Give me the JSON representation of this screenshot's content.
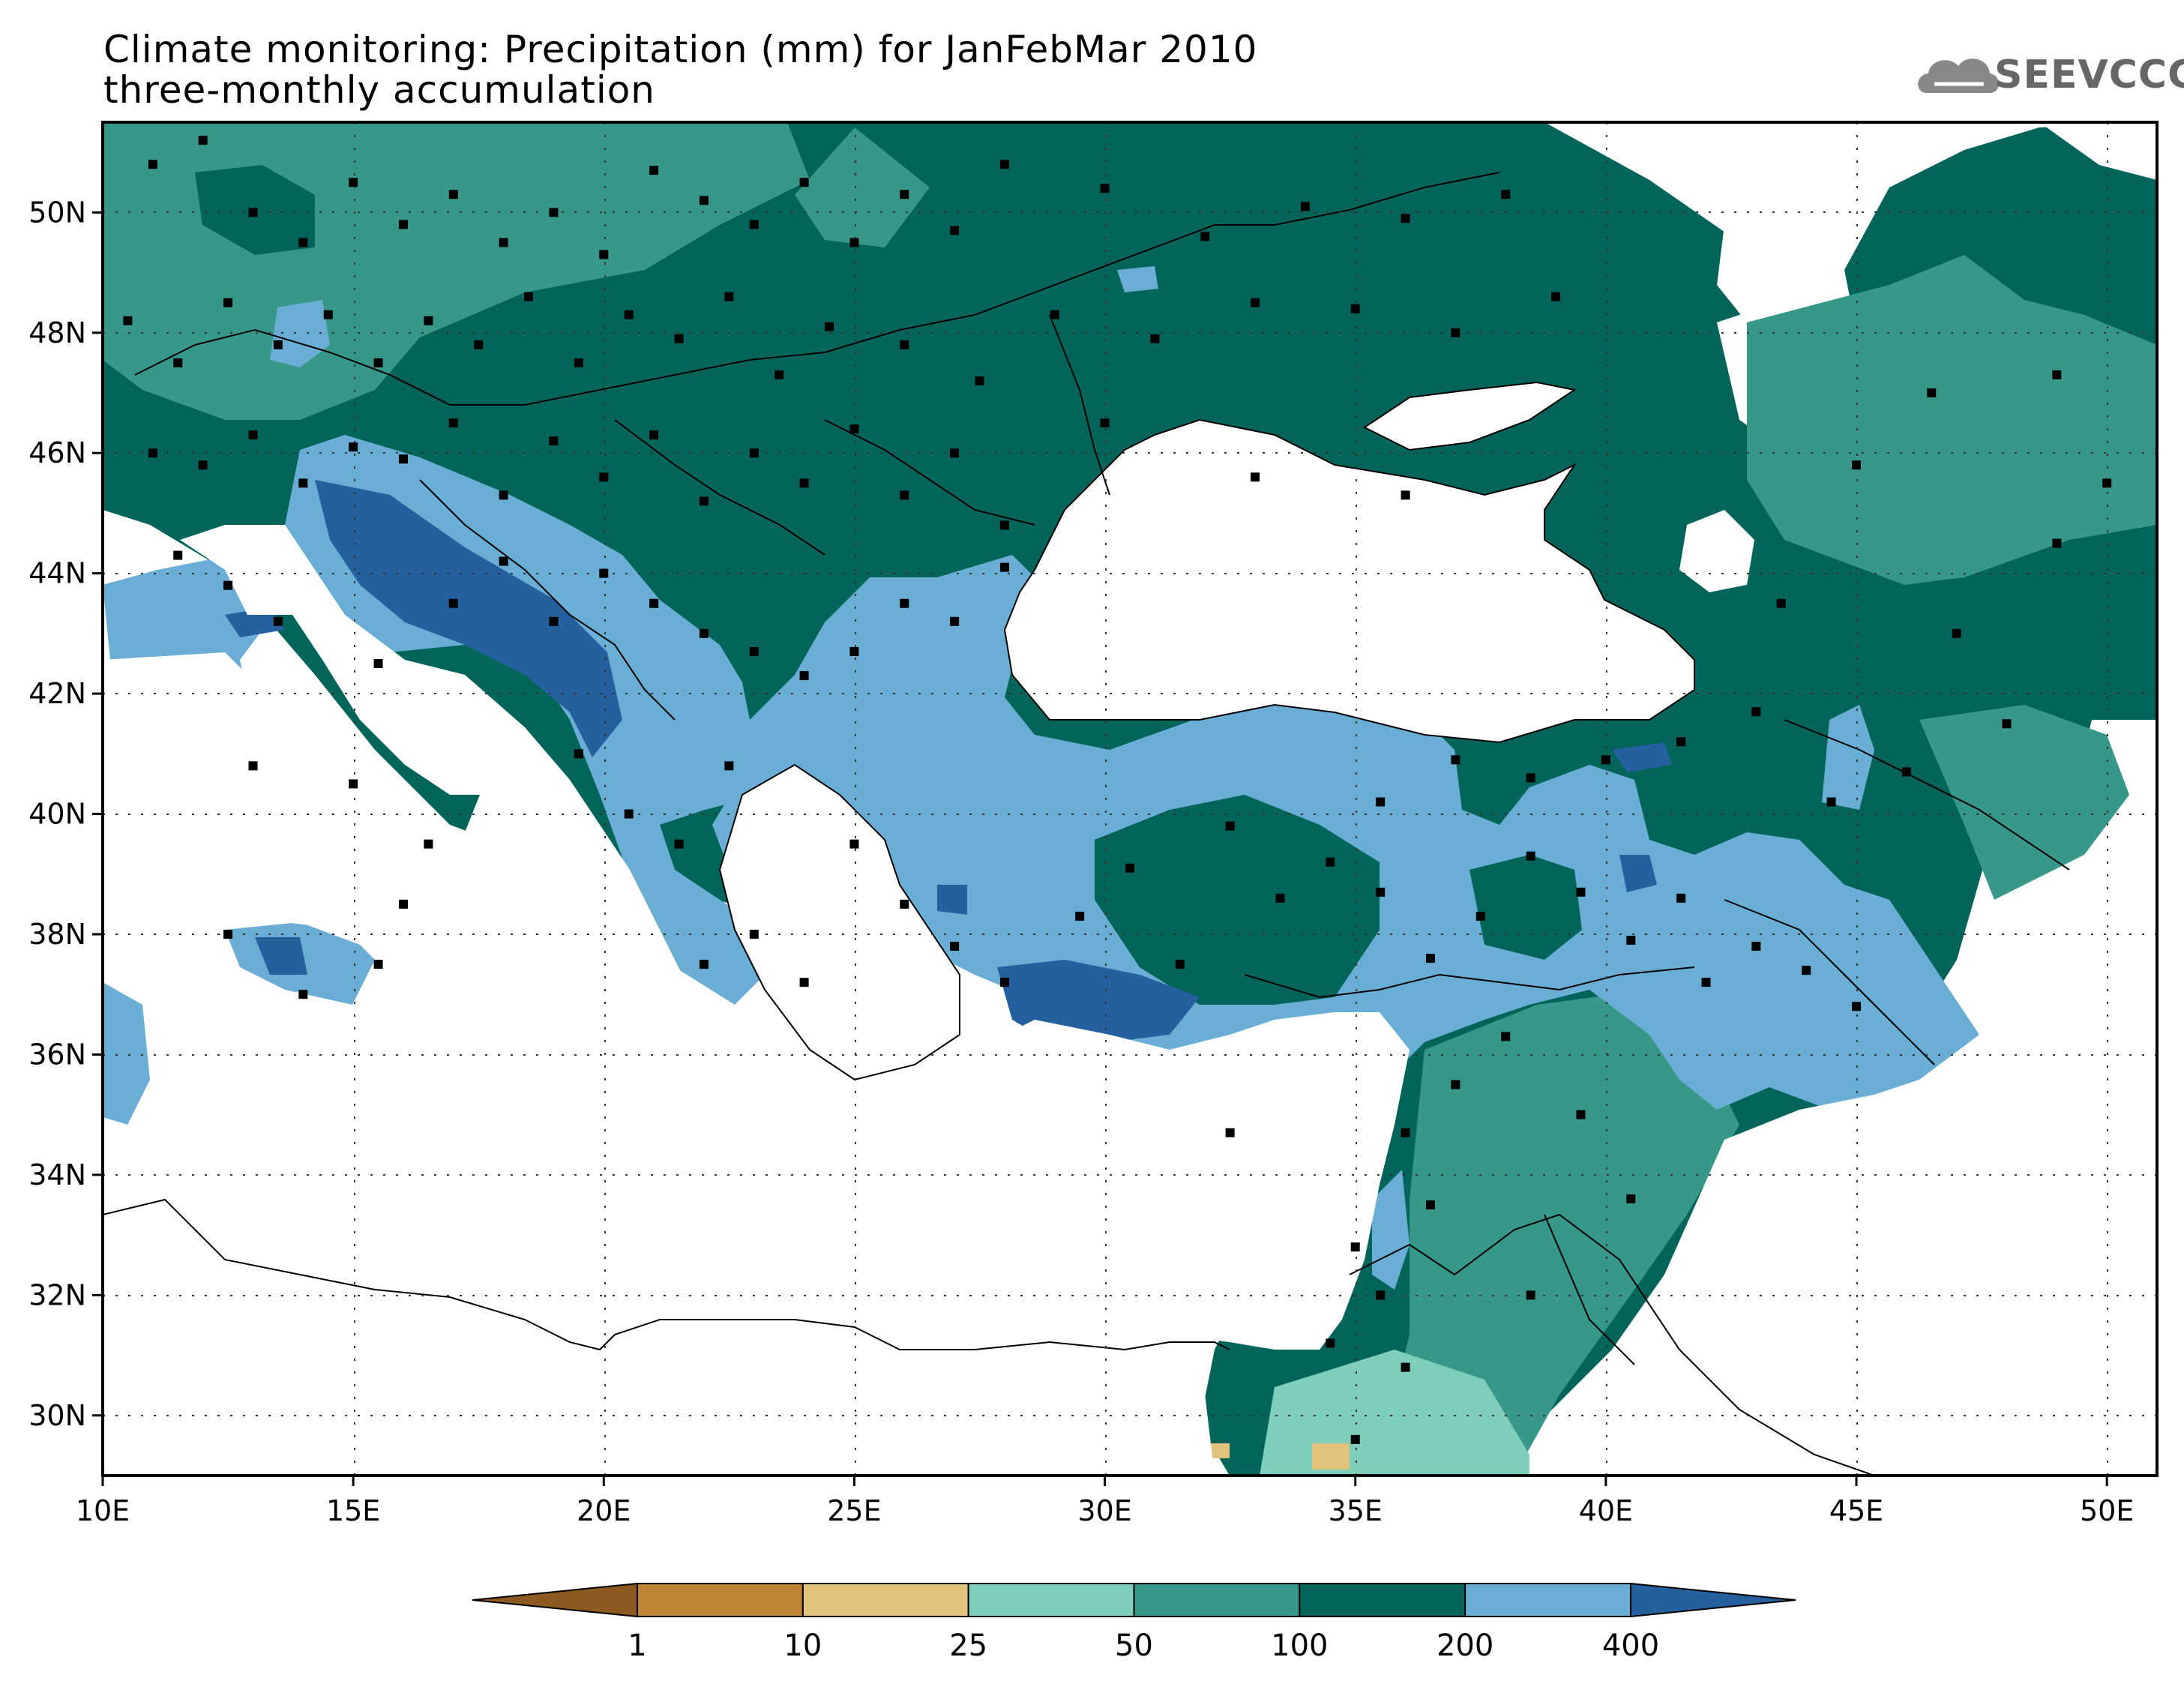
{
  "title": {
    "line1": "Climate monitoring: Precipitation (mm) for JanFebMar 2010",
    "line2": "three-monthly accumulation"
  },
  "logo": {
    "text": "SEEVCCC",
    "icon": "cloud-icon"
  },
  "map": {
    "lon_range": [
      10,
      51
    ],
    "lat_range": [
      29,
      51.5
    ],
    "lon_ticks": [
      "10E",
      "15E",
      "20E",
      "25E",
      "30E",
      "35E",
      "40E",
      "45E",
      "50E"
    ],
    "lat_ticks": [
      "30N",
      "32N",
      "34N",
      "36N",
      "38N",
      "40N",
      "42N",
      "44N",
      "46N",
      "48N",
      "50N"
    ],
    "grid": "dotted",
    "station_markers": "black squares"
  },
  "colorbar": {
    "labels": [
      "1",
      "10",
      "25",
      "50",
      "100",
      "200",
      "400"
    ],
    "colors": [
      "#8c5a20",
      "#be8534",
      "#e0c27c",
      "#7fcdbb",
      "#379889",
      "#03655a",
      "#6aaed6",
      "#245f9e"
    ],
    "unit": "mm"
  }
}
